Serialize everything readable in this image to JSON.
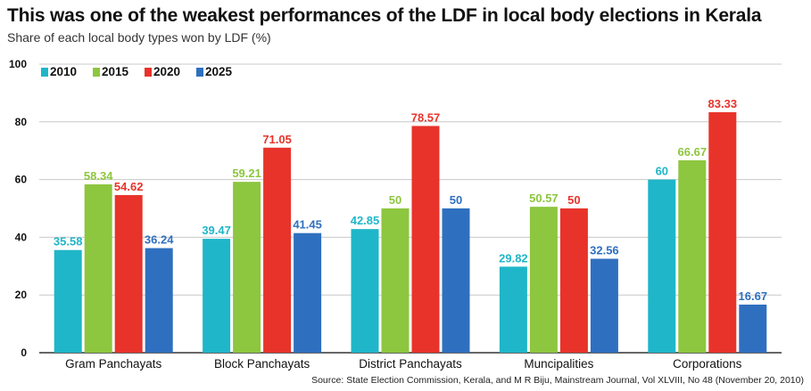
{
  "chart_data": {
    "type": "bar",
    "title": "This was one of the weakest performances of the LDF in local body elections in Kerala",
    "subtitle": "Share of each local body types won by LDF (%)",
    "source": "Source: State Election Commission, Kerala, and M R Biju, Mainstream Journal, Vol XLVIII, No 48 (November 20, 2010)",
    "categories": [
      "Gram Panchayats",
      "Block Panchayats",
      "District Panchayats",
      "Muncipalities",
      "Corporations"
    ],
    "series": [
      {
        "name": "2010",
        "color": "#1fb6c9",
        "values": [
          35.58,
          39.47,
          42.85,
          29.82,
          60
        ]
      },
      {
        "name": "2015",
        "color": "#8dc63f",
        "values": [
          58.34,
          59.21,
          50,
          50.57,
          66.67
        ]
      },
      {
        "name": "2020",
        "color": "#e8332a",
        "values": [
          54.62,
          71.05,
          78.57,
          50,
          83.33
        ]
      },
      {
        "name": "2025",
        "color": "#2f6fbf",
        "values": [
          36.24,
          41.45,
          50,
          32.56,
          16.67
        ]
      }
    ],
    "data_labels": [
      [
        "35.58",
        "39.47",
        "42.85",
        "29.82",
        "60"
      ],
      [
        "58.34",
        "59.21",
        "50",
        "50.57",
        "66.67"
      ],
      [
        "54.62",
        "71.05",
        "78.57",
        "50",
        "83.33"
      ],
      [
        "36.24",
        "41.45",
        "50",
        "32.56",
        "16.67"
      ]
    ],
    "ylim": [
      0,
      100
    ],
    "yticks": [
      0,
      20,
      40,
      60,
      80,
      100
    ],
    "grid": true,
    "legend_position": "top-left"
  }
}
